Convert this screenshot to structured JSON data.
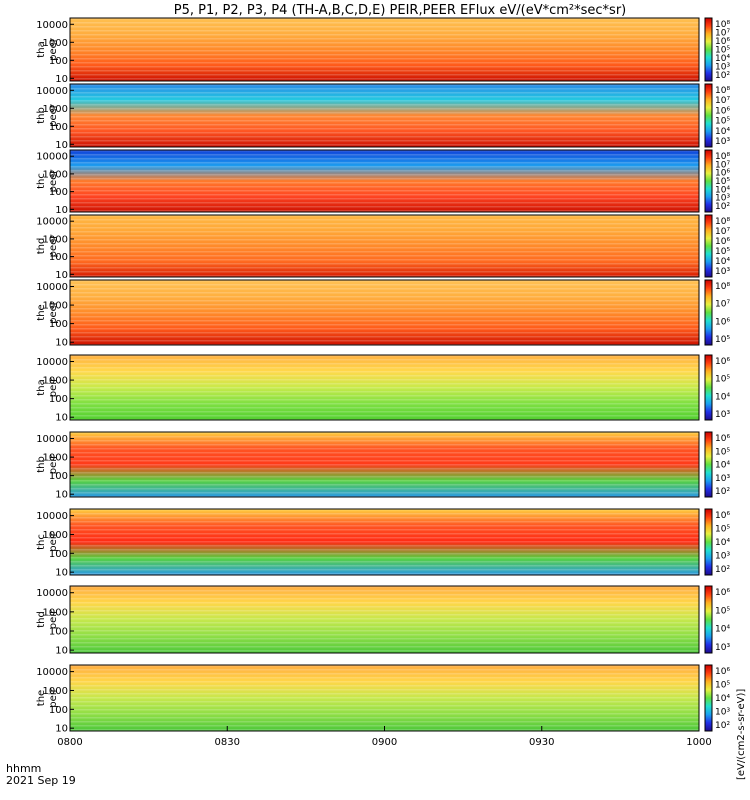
{
  "chart_data": {
    "type": "heatmap",
    "title": "P5, P1, P2, P3, P4 (TH-A,B,C,D,E) PEIR,PEER EFlux eV/(eV*cm²*sec*sr)",
    "x_ticks": [
      "0800",
      "0830",
      "0900",
      "0930",
      "1000"
    ],
    "x_range": [
      "0800",
      "1000"
    ],
    "x_label_line1": "hhmm",
    "x_label_line2": "2021 Sep 19",
    "y_scale": "log",
    "y_ticks": [
      "10",
      "100",
      "1000",
      "10000"
    ],
    "colorscale": "rainbow",
    "colorbar_unit": "[eV/(cm2-s-sr-eV)]",
    "panels": [
      {
        "label1": "tha",
        "label2": "peer",
        "cb_ticks": [
          "10⁸",
          "10⁷",
          "10⁶",
          "10⁵",
          "10⁴",
          "10³",
          "10²"
        ]
      },
      {
        "label1": "thb",
        "label2": "peer",
        "cb_ticks": [
          "10⁸",
          "10⁷",
          "10⁶",
          "10⁵",
          "10⁴",
          "10³"
        ]
      },
      {
        "label1": "thc",
        "label2": "peer",
        "cb_ticks": [
          "10⁸",
          "10⁷",
          "10⁶",
          "10⁵",
          "10⁴",
          "10³",
          "10²"
        ]
      },
      {
        "label1": "thd",
        "label2": "peer",
        "cb_ticks": [
          "10⁸",
          "10⁷",
          "10⁶",
          "10⁵",
          "10⁴",
          "10³"
        ]
      },
      {
        "label1": "the",
        "label2": "peer",
        "cb_ticks": [
          "10⁸",
          "10⁷",
          "10⁶",
          "10⁵"
        ]
      },
      {
        "label1": "tha",
        "label2": "peir",
        "cb_ticks": [
          "10⁶",
          "10⁵",
          "10⁴",
          "10³"
        ]
      },
      {
        "label1": "thb",
        "label2": "peir",
        "cb_ticks": [
          "10⁶",
          "10⁵",
          "10⁴",
          "10³",
          "10²"
        ]
      },
      {
        "label1": "thc",
        "label2": "peir",
        "cb_ticks": [
          "10⁶",
          "10⁵",
          "10⁴",
          "10³",
          "10²"
        ]
      },
      {
        "label1": "thd",
        "label2": "peir",
        "cb_ticks": [
          "10⁶",
          "10⁵",
          "10⁴",
          "10³"
        ]
      },
      {
        "label1": "the",
        "label2": "peir",
        "cb_ticks": [
          "10⁶",
          "10⁵",
          "10⁴",
          "10³",
          "10²"
        ]
      }
    ]
  }
}
